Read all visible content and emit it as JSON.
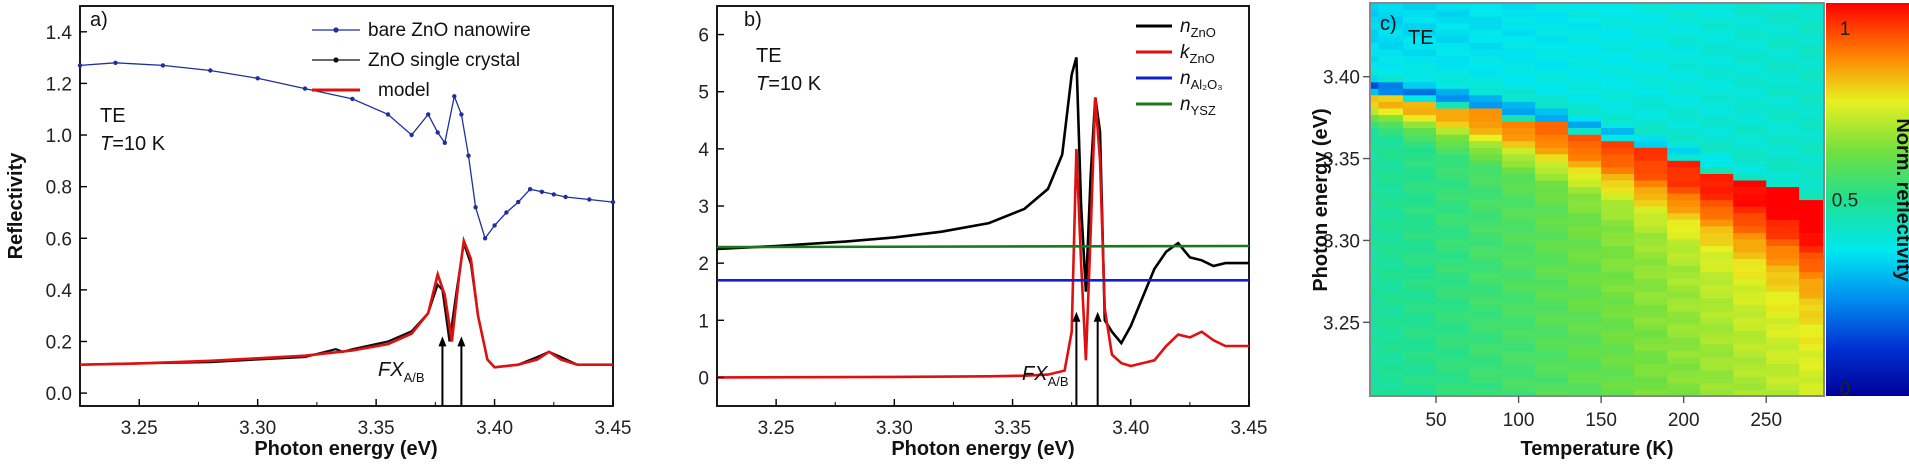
{
  "chart_data": [
    {
      "panel": "a",
      "type": "line",
      "panel_label": "a)",
      "annotation_mode": "TE",
      "annotation_temp_sym": "T",
      "annotation_temp_val": "=10 K",
      "xlabel": "Photon energy (eV)",
      "ylabel": "Reflectivity",
      "xlim": [
        3.225,
        3.45
      ],
      "ylim": [
        -0.05,
        1.5
      ],
      "xticks": [
        "3.25",
        "3.30",
        "3.35",
        "3.40",
        "3.45"
      ],
      "xtick_values": [
        3.25,
        3.3,
        3.35,
        3.4,
        3.45
      ],
      "yticks": [
        "0.0",
        "0.2",
        "0.4",
        "0.6",
        "0.8",
        "1.0",
        "1.2",
        "1.4"
      ],
      "ytick_values": [
        0,
        0.2,
        0.4,
        0.6,
        0.8,
        1.0,
        1.2,
        1.4
      ],
      "fx_label_main": "FX",
      "fx_label_sub": "A/B",
      "arrows_x": [
        3.378,
        3.386
      ],
      "series": [
        {
          "name": "bare ZnO nanowire",
          "color": "#1f2fa0",
          "marker": true,
          "x": [
            3.225,
            3.24,
            3.26,
            3.28,
            3.3,
            3.32,
            3.34,
            3.355,
            3.365,
            3.372,
            3.376,
            3.379,
            3.383,
            3.386,
            3.389,
            3.392,
            3.396,
            3.4,
            3.405,
            3.41,
            3.415,
            3.42,
            3.425,
            3.43,
            3.44,
            3.45
          ],
          "y": [
            1.27,
            1.28,
            1.27,
            1.25,
            1.22,
            1.18,
            1.14,
            1.08,
            1.0,
            1.08,
            1.01,
            0.97,
            1.15,
            1.08,
            0.92,
            0.72,
            0.6,
            0.65,
            0.7,
            0.74,
            0.79,
            0.78,
            0.77,
            0.76,
            0.75,
            0.74
          ]
        },
        {
          "name": "ZnO single crystal",
          "color": "#111111",
          "marker": false,
          "x": [
            3.225,
            3.25,
            3.28,
            3.3,
            3.32,
            3.333,
            3.336,
            3.34,
            3.355,
            3.365,
            3.372,
            3.376,
            3.378,
            3.381,
            3.384,
            3.387,
            3.39,
            3.393,
            3.397,
            3.4,
            3.41,
            3.418,
            3.423,
            3.428,
            3.435,
            3.45
          ],
          "y": [
            0.11,
            0.115,
            0.12,
            0.13,
            0.14,
            0.17,
            0.16,
            0.17,
            0.2,
            0.24,
            0.31,
            0.42,
            0.4,
            0.2,
            0.4,
            0.58,
            0.5,
            0.3,
            0.13,
            0.1,
            0.11,
            0.14,
            0.16,
            0.14,
            0.11,
            0.11
          ]
        },
        {
          "name": "model",
          "color": "#e01010",
          "marker": false,
          "x": [
            3.225,
            3.25,
            3.28,
            3.3,
            3.32,
            3.34,
            3.355,
            3.365,
            3.372,
            3.376,
            3.379,
            3.382,
            3.385,
            3.387,
            3.39,
            3.393,
            3.397,
            3.4,
            3.41,
            3.418,
            3.423,
            3.428,
            3.435,
            3.45
          ],
          "y": [
            0.11,
            0.115,
            0.125,
            0.135,
            0.145,
            0.165,
            0.19,
            0.23,
            0.31,
            0.46,
            0.38,
            0.2,
            0.45,
            0.59,
            0.52,
            0.3,
            0.13,
            0.1,
            0.11,
            0.13,
            0.16,
            0.13,
            0.11,
            0.11
          ]
        }
      ]
    },
    {
      "panel": "b",
      "type": "line",
      "panel_label": "b)",
      "annotation_mode": "TE",
      "annotation_temp_sym": "T",
      "annotation_temp_val": "=10 K",
      "xlabel": "Photon energy (eV)",
      "ylabel": "",
      "xlim": [
        3.225,
        3.45
      ],
      "ylim": [
        -0.5,
        6.5
      ],
      "xticks": [
        "3.25",
        "3.30",
        "3.35",
        "3.40",
        "3.45"
      ],
      "xtick_values": [
        3.25,
        3.3,
        3.35,
        3.4,
        3.45
      ],
      "yticks": [
        "0",
        "1",
        "2",
        "3",
        "4",
        "5",
        "6"
      ],
      "ytick_values": [
        0,
        1,
        2,
        3,
        4,
        5,
        6
      ],
      "fx_label_main": "FX",
      "fx_label_sub": "A/B",
      "arrows_x": [
        3.377,
        3.386
      ],
      "series": [
        {
          "name": "n",
          "sub": "ZnO",
          "color": "#000000",
          "x": [
            3.225,
            3.25,
            3.28,
            3.3,
            3.32,
            3.34,
            3.355,
            3.365,
            3.371,
            3.375,
            3.377,
            3.379,
            3.381,
            3.383,
            3.385,
            3.387,
            3.389,
            3.392,
            3.396,
            3.4,
            3.405,
            3.41,
            3.415,
            3.42,
            3.425,
            3.43,
            3.435,
            3.44,
            3.45
          ],
          "y": [
            2.25,
            2.3,
            2.38,
            2.45,
            2.55,
            2.7,
            2.95,
            3.3,
            3.9,
            5.3,
            5.6,
            3.0,
            1.5,
            3.5,
            4.9,
            4.3,
            1.0,
            0.8,
            0.6,
            0.9,
            1.4,
            1.9,
            2.2,
            2.35,
            2.1,
            2.05,
            1.95,
            2.0,
            2.0
          ]
        },
        {
          "name": "k",
          "sub": "ZnO",
          "color": "#e01010",
          "x": [
            3.225,
            3.3,
            3.34,
            3.355,
            3.365,
            3.372,
            3.375,
            3.377,
            3.379,
            3.381,
            3.383,
            3.385,
            3.387,
            3.389,
            3.392,
            3.396,
            3.4,
            3.41,
            3.415,
            3.42,
            3.425,
            3.43,
            3.435,
            3.44,
            3.45
          ],
          "y": [
            0.0,
            0.01,
            0.02,
            0.03,
            0.05,
            0.12,
            0.8,
            4.0,
            2.0,
            0.3,
            2.5,
            4.9,
            3.8,
            1.2,
            0.4,
            0.25,
            0.2,
            0.3,
            0.55,
            0.75,
            0.7,
            0.8,
            0.65,
            0.55,
            0.55
          ]
        },
        {
          "name": "n",
          "sub": "Al2O3",
          "color": "#1020d0",
          "x": [
            3.225,
            3.45
          ],
          "y": [
            1.7,
            1.7
          ]
        },
        {
          "name": "n",
          "sub": "YSZ",
          "color": "#1a7a1a",
          "x": [
            3.225,
            3.45
          ],
          "y": [
            2.28,
            2.3
          ]
        }
      ],
      "legend": [
        {
          "main": "n",
          "sub": "ZnO"
        },
        {
          "main": "k",
          "sub": "ZnO"
        },
        {
          "main": "n",
          "sub": "Al₂O₃"
        },
        {
          "main": "n",
          "sub": "YSZ"
        }
      ]
    },
    {
      "panel": "c",
      "type": "heatmap",
      "panel_label": "c)",
      "annotation_mode": "TE",
      "xlabel": "Temperature (K)",
      "ylabel": "Photon energy (eV)",
      "colorbar_label": "Norm. reflectivity",
      "xlim": [
        10,
        285
      ],
      "ylim": [
        3.205,
        3.445
      ],
      "xticks": [
        "50",
        "100",
        "150",
        "200",
        "250"
      ],
      "xtick_values": [
        50,
        100,
        150,
        200,
        250
      ],
      "yticks": [
        "3.25",
        "3.30",
        "3.35",
        "3.40"
      ],
      "ytick_values": [
        3.25,
        3.3,
        3.35,
        3.4
      ],
      "colorbar_ticks": [
        "0",
        "0.5",
        "1"
      ],
      "colorbar_tick_values": [
        0,
        0.5,
        1
      ],
      "temperatures": [
        10,
        20,
        40,
        60,
        80,
        100,
        120,
        140,
        160,
        180,
        200,
        220,
        240,
        260,
        280
      ],
      "resonance_energy": [
        3.385,
        3.384,
        3.382,
        3.379,
        3.375,
        3.371,
        3.367,
        3.362,
        3.357,
        3.351,
        3.345,
        3.339,
        3.333,
        3.327,
        3.32
      ]
    }
  ]
}
